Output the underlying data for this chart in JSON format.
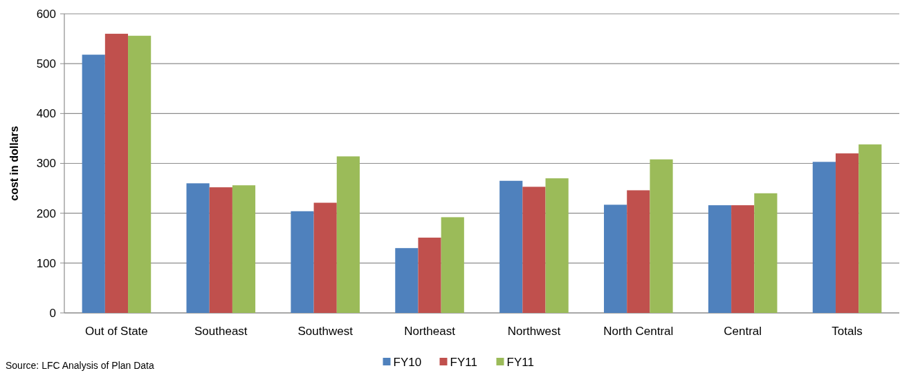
{
  "chart_data": {
    "type": "bar",
    "ylabel": "cost in dollars",
    "categories": [
      "Out of State",
      "Southeast",
      "Southwest",
      "Northeast",
      "Northwest",
      "North Central",
      "Central",
      "Totals"
    ],
    "series": [
      {
        "name": "FY10",
        "color": "#4f81bd",
        "values": [
          518,
          260,
          204,
          130,
          265,
          217,
          216,
          303
        ]
      },
      {
        "name": "FY11",
        "color": "#c0504d",
        "values": [
          560,
          252,
          221,
          151,
          253,
          246,
          216,
          320
        ]
      },
      {
        "name": "FY11",
        "color": "#9bbb59",
        "values": [
          556,
          256,
          314,
          192,
          270,
          308,
          240,
          338
        ]
      }
    ],
    "ylim": [
      0,
      600
    ],
    "yticks": [
      0,
      100,
      200,
      300,
      400,
      500,
      600
    ],
    "grid": "y",
    "legend": "bottom",
    "annotations": [
      "Source: LFC Analysis of Plan Data"
    ]
  }
}
